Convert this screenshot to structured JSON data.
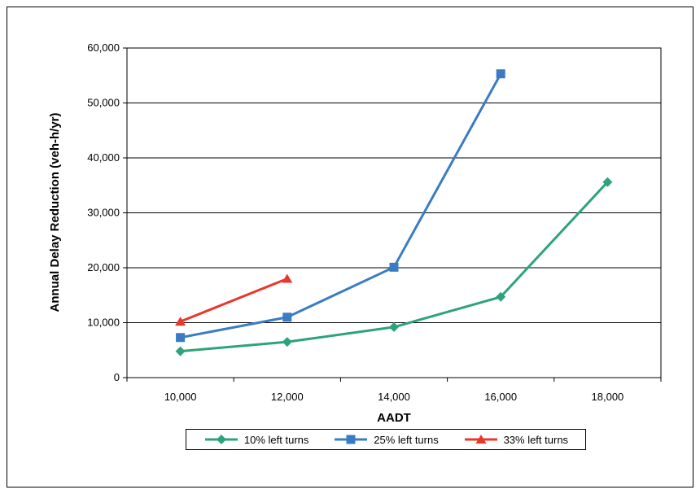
{
  "chart_data": {
    "type": "line",
    "xlabel": "AADT",
    "ylabel": "Annual Delay Reduction (veh-h/yr)",
    "xlim": [
      9000,
      19000
    ],
    "ylim": [
      0,
      60000
    ],
    "x_ticks": [
      "10,000",
      "12,000",
      "14,000",
      "16,000",
      "18,000"
    ],
    "y_ticks": [
      "0",
      "10,000",
      "20,000",
      "30,000",
      "40,000",
      "50,000",
      "60,000"
    ],
    "grid": "horizontal",
    "legend_position": "bottom",
    "series": [
      {
        "name": "10% left turns",
        "color": "#2ca37a",
        "marker": "diamond",
        "x": [
          10000,
          12000,
          14000,
          16000,
          18000
        ],
        "y": [
          4800,
          6500,
          9200,
          14700,
          35600
        ]
      },
      {
        "name": "25% left turns",
        "color": "#3a7cc4",
        "marker": "square",
        "x": [
          10000,
          12000,
          14000,
          16000
        ],
        "y": [
          7300,
          11000,
          20100,
          55300
        ]
      },
      {
        "name": "33% left turns",
        "color": "#e8372c",
        "marker": "triangle",
        "x": [
          10000,
          12000
        ],
        "y": [
          10200,
          18000
        ]
      }
    ]
  }
}
